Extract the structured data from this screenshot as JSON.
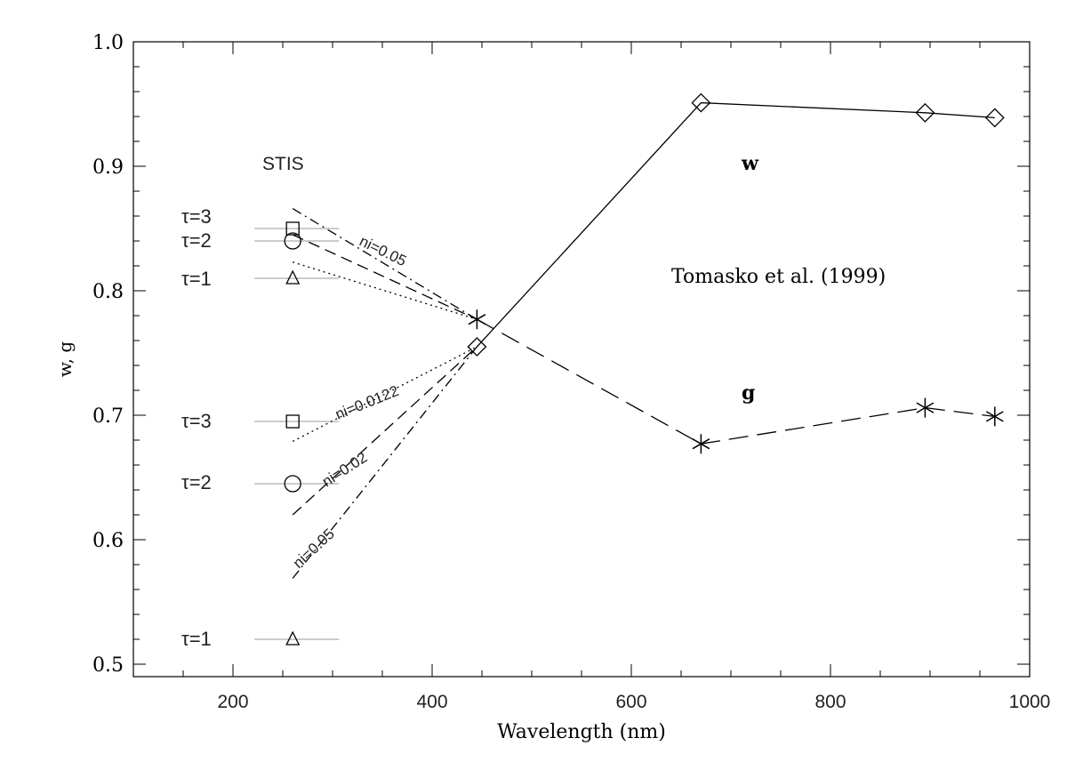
{
  "chart_data": {
    "type": "line",
    "xlabel": "Wavelength (nm)",
    "ylabel": "w, g",
    "xlim": [
      100,
      1000
    ],
    "ylim": [
      0.49,
      1.0
    ],
    "x_ticks": [
      200,
      400,
      600,
      800,
      1000
    ],
    "y_ticks": [
      0.5,
      0.6,
      0.7,
      0.8,
      0.9,
      1.0
    ],
    "y_tick_labels": [
      "0.5",
      "0.6",
      "0.7",
      "0.8",
      "0.9",
      "1.0"
    ],
    "grid": false,
    "series": [
      {
        "name": "w",
        "style": "solid",
        "marker": "diamond",
        "x": [
          445,
          670,
          895,
          965
        ],
        "y": [
          0.755,
          0.951,
          0.943,
          0.939
        ]
      },
      {
        "name": "g",
        "style": "long-dash",
        "marker": "asterisk",
        "x": [
          445,
          670,
          895,
          965
        ],
        "y": [
          0.777,
          0.677,
          0.706,
          0.699
        ]
      }
    ],
    "stis_points": [
      {
        "tau_label": "τ=3",
        "marker": "square",
        "x": 260,
        "y": 0.85
      },
      {
        "tau_label": "τ=2",
        "marker": "circle",
        "x": 260,
        "y": 0.84
      },
      {
        "tau_label": "τ=1",
        "marker": "triangle",
        "x": 260,
        "y": 0.81
      },
      {
        "tau_label": "τ=3",
        "marker": "square",
        "x": 260,
        "y": 0.695
      },
      {
        "tau_label": "τ=2",
        "marker": "circle",
        "x": 260,
        "y": 0.645
      },
      {
        "tau_label": "τ=1",
        "marker": "triangle",
        "x": 260,
        "y": 0.52
      }
    ],
    "extrapolations": [
      {
        "style": "dash-dot",
        "x": [
          260,
          445
        ],
        "y": [
          0.866,
          0.777
        ]
      },
      {
        "style": "dashed",
        "x": [
          260,
          445
        ],
        "y": [
          0.845,
          0.777
        ]
      },
      {
        "style": "dotted",
        "x": [
          260,
          445
        ],
        "y": [
          0.823,
          0.777
        ]
      },
      {
        "style": "dotted",
        "x": [
          260,
          445
        ],
        "y": [
          0.679,
          0.755
        ]
      },
      {
        "style": "dashed",
        "x": [
          260,
          445
        ],
        "y": [
          0.62,
          0.755
        ]
      },
      {
        "style": "dash-dot",
        "x": [
          260,
          445
        ],
        "y": [
          0.569,
          0.755
        ]
      }
    ],
    "annotations": {
      "stis": "STIS",
      "w_label": "w",
      "g_label": "g",
      "reference": "Tomasko et al. (1999)",
      "ni_upper": "ni=0.05",
      "ni_lower_1": "ni=0.0122",
      "ni_lower_2": "ni=0.02",
      "ni_lower_3": "ni=0.05"
    }
  }
}
